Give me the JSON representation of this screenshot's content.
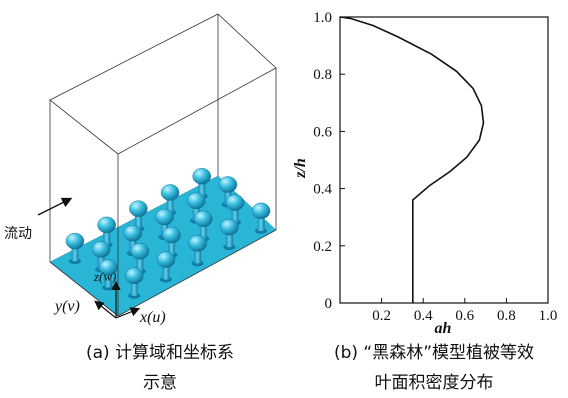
{
  "panel_a": {
    "flow_label": "流动",
    "x_label": "x(u)",
    "y_label": "y(v)",
    "z_label": "z(w)",
    "caption_line1": "(a) 计算域和坐标系",
    "caption_line2": "示意"
  },
  "panel_b": {
    "caption_line1": "(b) “黑森林”模型植被等效",
    "caption_line2": "叶面积密度分布"
  },
  "chart_data": {
    "type": "line",
    "xlabel": "ah",
    "ylabel": "z/h",
    "xlim": [
      0,
      1.0
    ],
    "ylim": [
      0,
      1.0
    ],
    "xticks": [
      0.2,
      0.4,
      0.6,
      0.8,
      1.0
    ],
    "xtick_labels": [
      "0.2",
      "0.4",
      "0.6",
      "0.8",
      "1.0"
    ],
    "yticks": [
      0,
      0.2,
      0.4,
      0.6,
      0.8,
      1.0
    ],
    "ytick_labels": [
      "0",
      "0.2",
      "0.4",
      "0.6",
      "0.8",
      "1.0"
    ],
    "grid": false,
    "series": [
      {
        "points": [
          [
            0.35,
            0
          ],
          [
            0.35,
            0.36
          ],
          [
            0.43,
            0.41
          ],
          [
            0.53,
            0.46
          ],
          [
            0.61,
            0.51
          ],
          [
            0.67,
            0.57
          ],
          [
            0.69,
            0.63
          ],
          [
            0.68,
            0.69
          ],
          [
            0.64,
            0.75
          ],
          [
            0.56,
            0.81
          ],
          [
            0.44,
            0.87
          ],
          [
            0.28,
            0.93
          ],
          [
            0.16,
            0.97
          ],
          [
            0.05,
            0.995
          ],
          [
            0.0,
            1.0
          ]
        ]
      }
    ]
  }
}
